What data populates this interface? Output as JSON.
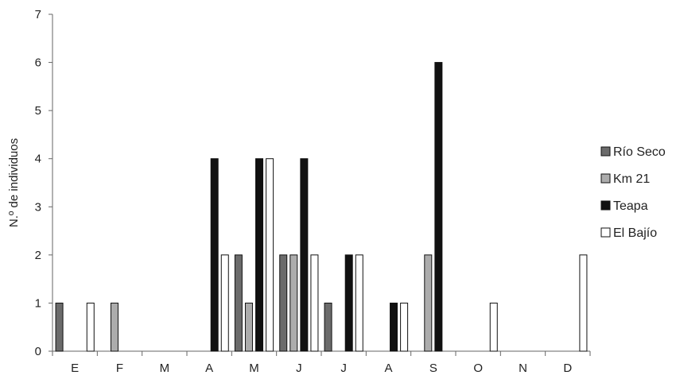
{
  "chart_data": {
    "type": "bar",
    "title": "",
    "xlabel": "",
    "ylabel": "N.º de individuos",
    "ylim": [
      0,
      7
    ],
    "yticks": [
      0,
      1,
      2,
      3,
      4,
      5,
      6,
      7
    ],
    "grid": false,
    "legend_position": "right",
    "categories": [
      "E",
      "F",
      "M",
      "A",
      "M",
      "J",
      "J",
      "A",
      "S",
      "O",
      "N",
      "D"
    ],
    "series": [
      {
        "name": "Río Seco",
        "color": "#6b6b6b",
        "values": [
          1,
          0,
          0,
          0,
          2,
          2,
          1,
          0,
          0,
          0,
          0,
          0
        ]
      },
      {
        "name": "Km 21",
        "color": "#acacac",
        "values": [
          0,
          1,
          0,
          0,
          1,
          2,
          0,
          0,
          2,
          0,
          0,
          0
        ]
      },
      {
        "name": "Teapa",
        "color": "#111111",
        "values": [
          0,
          0,
          0,
          4,
          4,
          4,
          2,
          1,
          6,
          0,
          0,
          0
        ]
      },
      {
        "name": "El Bajío",
        "color": "#ffffff",
        "values": [
          1,
          0,
          0,
          2,
          4,
          2,
          2,
          1,
          0,
          1,
          0,
          2
        ]
      }
    ]
  }
}
